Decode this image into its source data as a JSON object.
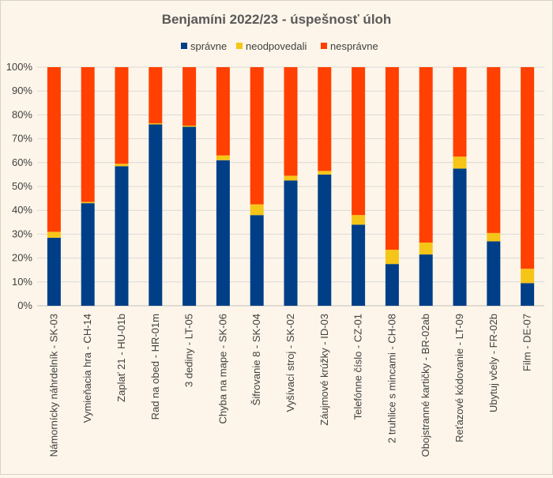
{
  "chart_data": {
    "type": "bar",
    "stacked": true,
    "title": "Benjamíni 2022/23 - úspešnosť úloh",
    "xlabel": "",
    "ylabel": "",
    "ylim": [
      0,
      100
    ],
    "yticks": [
      "0%",
      "10%",
      "20%",
      "30%",
      "40%",
      "50%",
      "60%",
      "70%",
      "80%",
      "90%",
      "100%"
    ],
    "grid": true,
    "legend_position": "top",
    "categories": [
      "Námornícky náhrdelník - SK-03",
      "Vymieňacia hra - CH-14",
      "Zaplať 21 - HU-01b",
      "Rad na obed - HR-01m",
      "3 dediny - LT-05",
      "Chyba na mape - SK-06",
      "Šifrovanie 8 - SK-04",
      "Vyšívací stroj - SK-02",
      "Záujmové krúžky - ID-03",
      "Telefónne číslo - CZ-01",
      "2 truhlice s mincami - CH-08",
      "Obojstranné kartičky - BR-02ab",
      "Reťazové kódovanie - LT-09",
      "Ubytuj včely - FR-02b",
      "Film - DE-07"
    ],
    "series": [
      {
        "name": "správne",
        "color": "#003f87",
        "values": [
          28.5,
          43,
          58.5,
          76,
          75,
          61,
          38,
          52.5,
          55,
          34,
          17.5,
          21.5,
          57.5,
          27,
          9.5
        ]
      },
      {
        "name": "neodpovedali",
        "color": "#f5c518",
        "values": [
          2.5,
          0.5,
          1,
          0.5,
          0.5,
          2,
          4.5,
          2,
          1.5,
          4,
          6,
          5,
          5,
          3.5,
          6
        ]
      },
      {
        "name": "nesprávne",
        "color": "#ff4000",
        "values": [
          69,
          56.5,
          40.5,
          23.5,
          24.5,
          37,
          57.5,
          45.5,
          43.5,
          62,
          76.5,
          73.5,
          37.5,
          69.5,
          84.5
        ]
      }
    ]
  }
}
